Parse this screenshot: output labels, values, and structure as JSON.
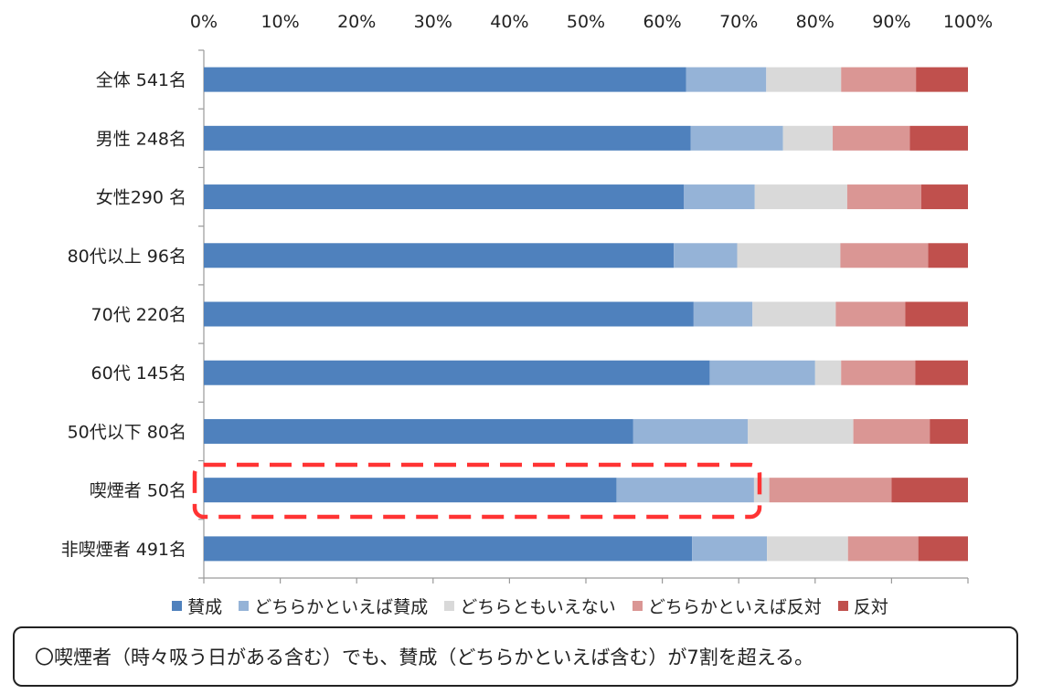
{
  "chart_data": {
    "type": "bar",
    "orientation": "horizontal",
    "stacked": "percent",
    "xlim": [
      0,
      100
    ],
    "x_ticks": [
      "0%",
      "10%",
      "20%",
      "30%",
      "40%",
      "50%",
      "60%",
      "70%",
      "80%",
      "90%",
      "100%"
    ],
    "categories": [
      "全体 541名",
      "男性 248名",
      "女性290 名",
      "80代以上 96名",
      "70代 220名",
      "60代 145名",
      "50代以下 80名",
      "喫煙者 50名",
      "非喫煙者 491名"
    ],
    "series": [
      {
        "name": "賛成",
        "color": "#4f81bd",
        "values": [
          63.1,
          63.7,
          62.8,
          61.5,
          64.1,
          66.2,
          56.2,
          54.0,
          63.9
        ]
      },
      {
        "name": "どちらかといえば賛成",
        "color": "#95b3d7",
        "values": [
          10.5,
          12.1,
          9.3,
          8.3,
          7.7,
          13.8,
          15.0,
          18.0,
          9.8
        ]
      },
      {
        "name": "どちらともいえない",
        "color": "#d9d9d9",
        "values": [
          9.8,
          6.5,
          12.1,
          13.5,
          10.9,
          3.4,
          13.8,
          2.0,
          10.6
        ]
      },
      {
        "name": "どちらかといえば反対",
        "color": "#da9694",
        "values": [
          9.8,
          10.1,
          9.7,
          11.5,
          9.1,
          9.7,
          10.0,
          16.0,
          9.2
        ]
      },
      {
        "name": "反対",
        "color": "#c0504d",
        "values": [
          6.8,
          7.6,
          6.1,
          5.2,
          8.2,
          6.9,
          5.0,
          10.0,
          6.5
        ]
      }
    ],
    "highlight": {
      "category": "喫煙者 50名",
      "style": "red dashed rounded box"
    },
    "legend_position": "bottom",
    "grid": false
  },
  "note": "〇喫煙者（時々吸う日がある含む）でも、賛成（どちらかといえば含む）が7割を超える。"
}
